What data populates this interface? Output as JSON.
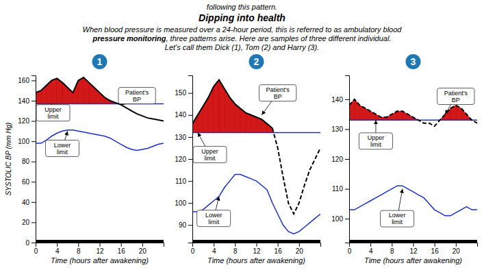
{
  "header": "following this pattern.",
  "title": "Dipping into health",
  "subtitle": [
    [
      "When blood pressure is measured over a 24-hour period, this is referred to as ambulatory blood"
    ],
    [
      "pressure monitoring",
      ", three patterns arise. Here are samples of three different individual."
    ],
    [
      "Let's call them Dick (1), Tom (2) and Harry (3)."
    ]
  ],
  "chart_data": [
    {
      "type": "line",
      "badge": "1",
      "color": "#cc0000",
      "x_label": "Time (hours after awakening)",
      "y_label": "SYSTOLIC BP (mm Hg)",
      "x": [
        0,
        1,
        2,
        3,
        4,
        5,
        6,
        7,
        8,
        9,
        10,
        11,
        12,
        13,
        14,
        15,
        16,
        17,
        18,
        19,
        20,
        21,
        22,
        23,
        24
      ],
      "xlim": [
        0,
        24
      ],
      "xticks": [
        0,
        4,
        8,
        12,
        16,
        20
      ],
      "ylim": [
        0,
        165
      ],
      "yticks": [
        0,
        20,
        40,
        60,
        80,
        100,
        120,
        140,
        160
      ],
      "series": [
        {
          "color": "#1a2ecc",
          "line_style": "solid",
          "values": [
            137,
            137,
            137,
            137,
            137,
            137,
            137,
            137,
            137,
            137,
            137,
            137,
            137,
            137,
            137,
            137,
            137,
            137,
            137,
            137,
            137,
            137,
            137,
            137,
            137
          ]
        },
        {
          "color": "#1a2ecc",
          "line_style": "solid",
          "values": [
            98,
            98,
            101,
            105,
            108,
            110,
            111,
            111,
            110,
            109,
            108,
            107,
            106,
            105,
            103,
            100,
            97,
            94,
            92,
            91,
            92,
            93,
            95,
            97,
            98
          ]
        },
        {
          "color": "#000000",
          "line_style": "solid",
          "values": [
            148,
            150,
            155,
            160,
            162,
            158,
            153,
            148,
            160,
            163,
            158,
            153,
            148,
            143,
            140,
            138,
            136,
            133,
            130,
            127,
            125,
            123,
            122,
            121,
            120
          ]
        }
      ],
      "annotations": [
        {
          "text": "Upper\nlimit",
          "x": 3,
          "y": 137,
          "text_x": 1.5,
          "text_y": 128
        },
        {
          "text": "Lower\nlimit",
          "x": 6,
          "y": 110,
          "text_x": 5,
          "text_y": 93
        },
        {
          "text": "Patient's\nBP",
          "x": 16,
          "y": 136,
          "text_x": 19,
          "text_y": 145
        }
      ]
    },
    {
      "type": "line",
      "badge": "2",
      "color": "#cc0000",
      "x_label": "Time (hours after awakening)",
      "x": [
        0,
        1,
        2,
        3,
        4,
        5,
        6,
        7,
        8,
        9,
        10,
        11,
        12,
        13,
        14,
        15,
        16,
        17,
        18,
        19,
        20,
        21,
        22,
        23,
        24
      ],
      "xlim": [
        0,
        24
      ],
      "xticks": [
        0,
        4,
        8,
        12,
        16,
        20
      ],
      "ylim": [
        82,
        158
      ],
      "yticks": [
        90,
        100,
        110,
        120,
        130,
        140,
        150
      ],
      "series": [
        {
          "color": "#1a2ecc",
          "line_style": "solid",
          "values": [
            132,
            132,
            132,
            132,
            132,
            132,
            132,
            132,
            132,
            132,
            132,
            132,
            132,
            132,
            132,
            132,
            132,
            132,
            132,
            132,
            132,
            132,
            132,
            132,
            132
          ]
        },
        {
          "color": "#1a2ecc",
          "line_style": "solid",
          "values": [
            96,
            96,
            97,
            99,
            101,
            103,
            107,
            110,
            113,
            113,
            112,
            111,
            110,
            108,
            106,
            100,
            95,
            90,
            87,
            86,
            87,
            89,
            91,
            93,
            95
          ]
        },
        {
          "color": "#000000",
          "line_style": "solid",
          "values": [
            136,
            140,
            144,
            148,
            153,
            156,
            152,
            148,
            145,
            143,
            141,
            140,
            139,
            138,
            136,
            134,
            null,
            null,
            null,
            null,
            null,
            null,
            null,
            null,
            null
          ]
        },
        {
          "color": "#000000",
          "line_style": "dashed",
          "values": [
            null,
            null,
            null,
            null,
            null,
            null,
            null,
            null,
            null,
            null,
            null,
            null,
            null,
            null,
            null,
            134,
            125,
            112,
            100,
            95,
            100,
            108,
            115,
            120,
            125
          ]
        }
      ],
      "annotations": [
        {
          "text": "Upper\nlimit",
          "x": 1,
          "y": 132,
          "text_x": 0.5,
          "text_y": 122
        },
        {
          "text": "Lower\nlimit",
          "x": 5,
          "y": 103,
          "text_x": 4,
          "text_y": 93
        },
        {
          "text": "Patient's\nBP",
          "x": 13,
          "y": 140,
          "text_x": 16,
          "text_y": 150
        }
      ]
    },
    {
      "type": "line",
      "badge": "3",
      "color": "#cc0000",
      "x_label": "Time (hours after awakening)",
      "x": [
        0,
        1,
        2,
        3,
        4,
        5,
        6,
        7,
        8,
        9,
        10,
        11,
        12,
        13,
        14,
        15,
        16,
        17,
        18,
        19,
        20,
        21,
        22,
        23,
        24
      ],
      "xlim": [
        0,
        24
      ],
      "xticks": [
        0,
        4,
        8,
        12,
        16,
        20
      ],
      "ylim": [
        92,
        148
      ],
      "yticks": [
        100,
        110,
        120,
        130,
        140
      ],
      "series": [
        {
          "color": "#1a2ecc",
          "line_style": "solid",
          "values": [
            133,
            133,
            133,
            133,
            133,
            133,
            133,
            133,
            133,
            133,
            133,
            133,
            133,
            133,
            133,
            133,
            133,
            133,
            133,
            133,
            133,
            133,
            133,
            133,
            133
          ]
        },
        {
          "color": "#1a2ecc",
          "line_style": "solid",
          "values": [
            103,
            103,
            104,
            105,
            106,
            107,
            108,
            109,
            110,
            111,
            111,
            110,
            109,
            108,
            107,
            105,
            103,
            102,
            101,
            101,
            102,
            103,
            104,
            103,
            103
          ]
        },
        {
          "color": "#000000",
          "line_style": "dashed",
          "values": [
            138,
            140,
            138,
            137,
            136,
            135,
            134,
            134,
            135,
            136,
            136,
            135,
            134,
            133,
            132,
            132,
            131,
            133,
            135,
            137,
            138,
            137,
            135,
            133,
            132
          ]
        }
      ],
      "annotations": [
        {
          "text": "Upper\nlimit",
          "x": 5,
          "y": 133,
          "text_x": 5,
          "text_y": 126
        },
        {
          "text": "Lower\nlimit",
          "x": 10,
          "y": 110,
          "text_x": 9,
          "text_y": 100
        },
        {
          "text": "Patient's\nBP",
          "x": 18,
          "y": 135,
          "text_x": 20,
          "text_y": 141
        }
      ]
    }
  ]
}
